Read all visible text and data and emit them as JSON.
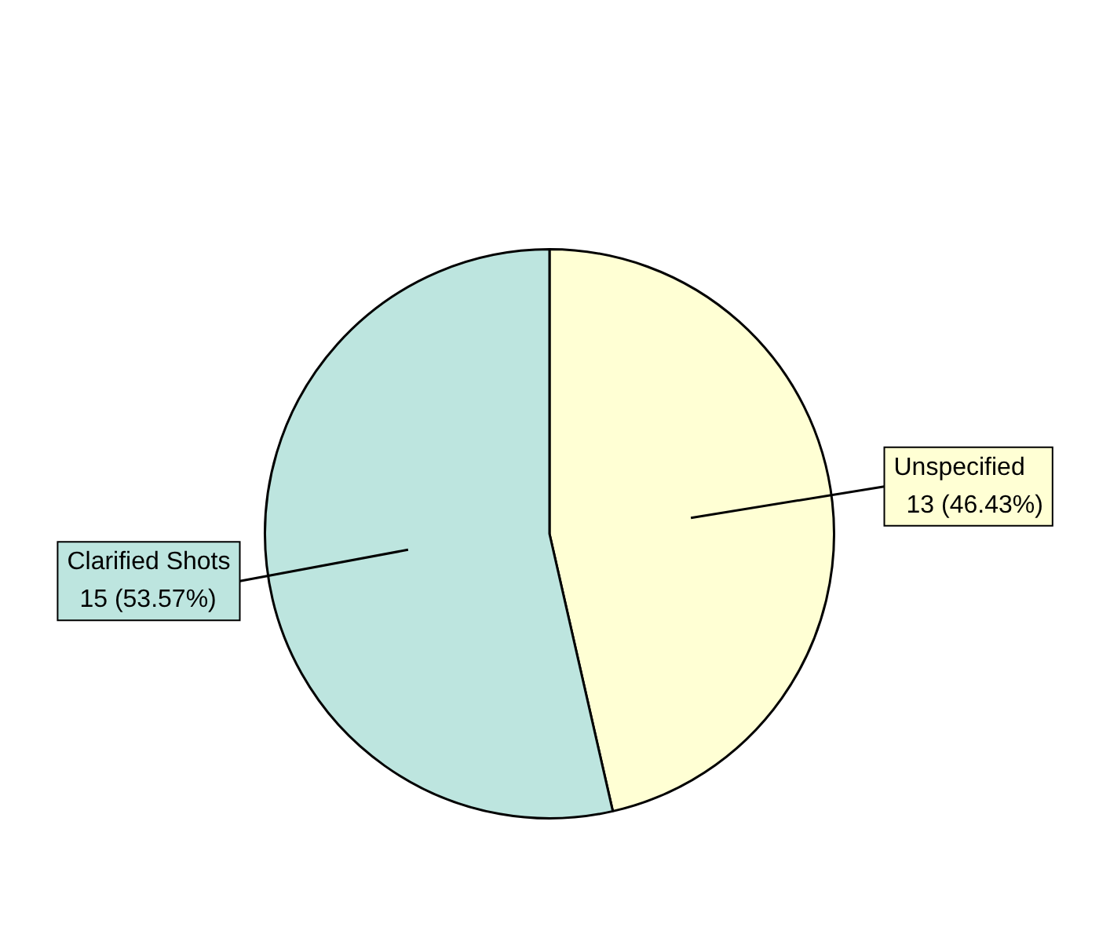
{
  "chart_data": {
    "type": "pie",
    "categories": [
      "Unspecified",
      "Clarified Shots"
    ],
    "values": [
      13,
      15
    ],
    "colors": [
      "#ffffd4",
      "#bde5df"
    ],
    "value_labels": [
      "13 (46.43%)",
      "15 (53.57%)"
    ],
    "legend": false
  }
}
